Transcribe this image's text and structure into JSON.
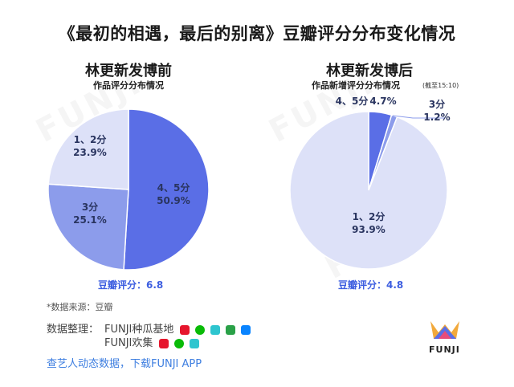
{
  "title": "《最初的相遇，最后的别离》豆瓣评分分布变化情况",
  "left": {
    "heading": "林更新发博前",
    "subheading": "作品评分分布情况",
    "score_text": "豆瓣评分：6.8"
  },
  "right": {
    "heading": "林更新发博后",
    "subheading": "作品新增评分分布情况",
    "note": "(截至15:10)",
    "score_text": "豆瓣评分：4.8"
  },
  "chart_data": [
    {
      "type": "pie",
      "title": "林更新发博前",
      "subtitle": "作品评分分布情况",
      "slices": [
        {
          "label": "4、5分",
          "value": 50.9,
          "value_text": "50.9%",
          "color": "#5a6ee6"
        },
        {
          "label": "3分",
          "value": 25.1,
          "value_text": "25.1%",
          "color": "#8c9ceb"
        },
        {
          "label": "1、2分",
          "value": 23.9,
          "value_text": "23.9%",
          "color": "#dde1f8"
        }
      ]
    },
    {
      "type": "pie",
      "title": "林更新发博后",
      "subtitle": "作品新增评分分布情况",
      "note": "(截至15:10)",
      "slices": [
        {
          "label": "4、5分",
          "value": 4.7,
          "value_text": "4.7%",
          "color": "#5a6ee6"
        },
        {
          "label": "3分",
          "value": 1.2,
          "value_text": "1.2%",
          "color": "#8c9ceb"
        },
        {
          "label": "1、2分",
          "value": 93.9,
          "value_text": "93.9%",
          "color": "#dde1f8"
        }
      ]
    }
  ],
  "footer": {
    "source": "*数据来源：豆瓣",
    "credit_label": "数据整理：",
    "credit_line1": "FUNJI种瓜基地",
    "credit_line2": "FUNJI欢集",
    "cta": "查艺人动态数据，下载FUNJI APP",
    "brand": "FUNJI",
    "icons_line1": [
      "weibo-icon",
      "wechat-icon",
      "bilibili-icon",
      "douban-icon",
      "zhihu-icon"
    ],
    "icons_line2": [
      "weibo-icon",
      "wechat-icon",
      "bilibili-icon"
    ]
  },
  "watermark": "FUNJI"
}
